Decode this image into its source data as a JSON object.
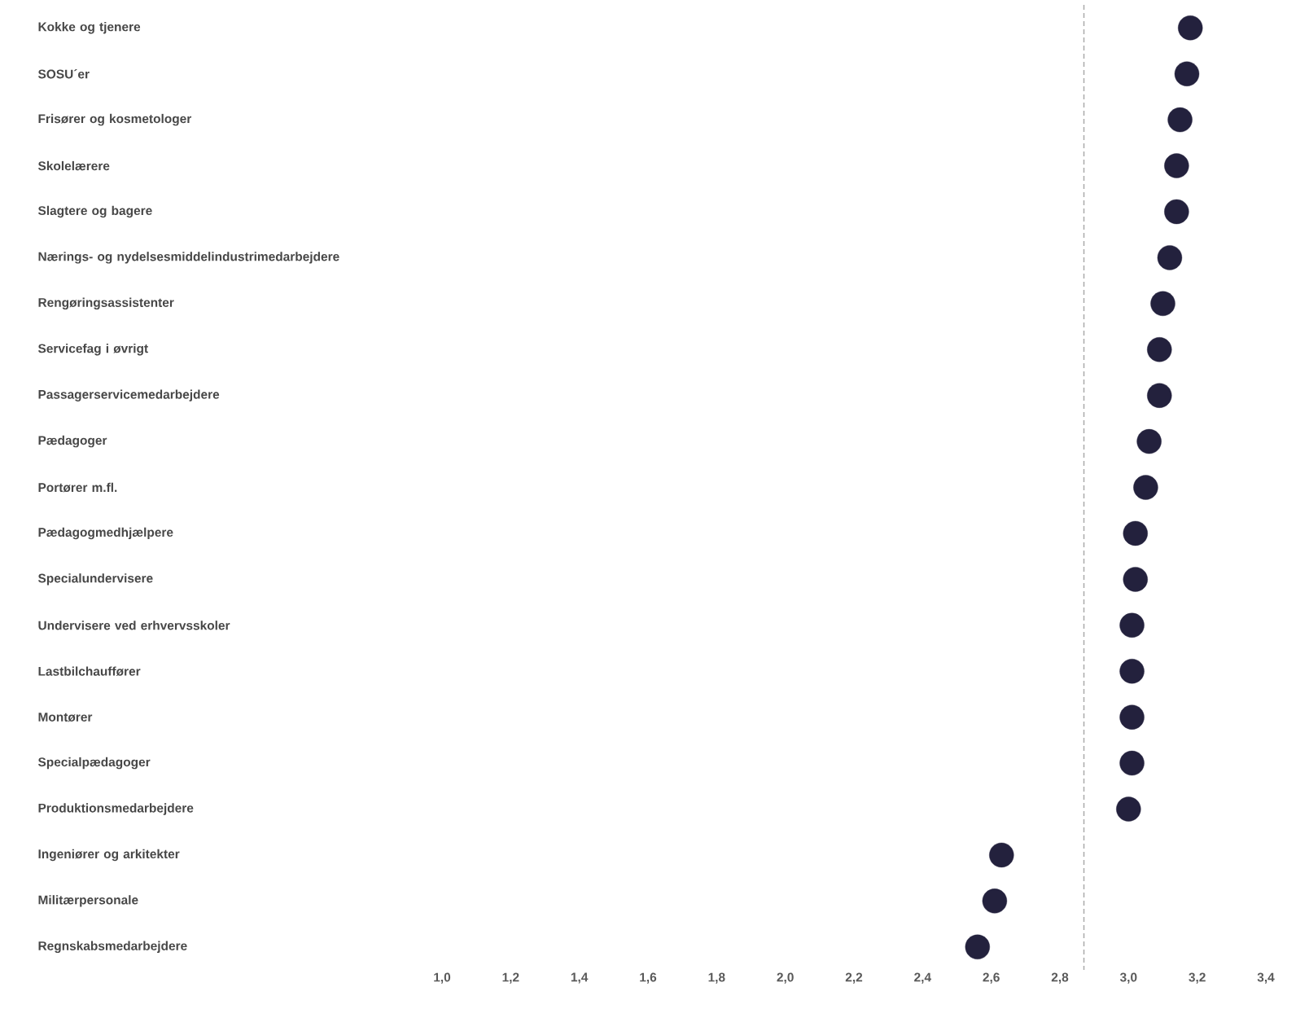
{
  "chart_data": {
    "type": "scatter",
    "orientation": "horizontal",
    "categories": [
      "Kokke og tjenere",
      "SOSU´er",
      "Frisører og kosmetologer",
      "Skolelærere",
      "Slagtere og bagere",
      "Nærings- og nydelsesmiddelindustrimedarbejdere",
      "Rengøringsassistenter",
      "Servicefag i øvrigt",
      "Passagerservicemedarbejdere",
      "Pædagoger",
      "Portører m.fl.",
      "Pædagogmedhjælpere",
      "Specialundervisere",
      "Undervisere ved erhvervsskoler",
      "Lastbilchauffører",
      "Montører",
      "Specialpædagoger",
      "Produktionsmedarbejdere",
      "Ingeniører og arkitekter",
      "Militærpersonale",
      "Regnskabsmedarbejdere"
    ],
    "values": [
      3.18,
      3.17,
      3.15,
      3.14,
      3.14,
      3.12,
      3.1,
      3.09,
      3.09,
      3.06,
      3.05,
      3.02,
      3.02,
      3.01,
      3.01,
      3.01,
      3.01,
      3.0,
      2.63,
      2.61,
      2.56
    ],
    "color": "#23213d",
    "marker": "circle",
    "xlim": [
      1.0,
      3.4
    ],
    "xticks": [
      {
        "value": 1.0,
        "label": "1,0"
      },
      {
        "value": 1.2,
        "label": "1,2"
      },
      {
        "value": 1.4,
        "label": "1,4"
      },
      {
        "value": 1.6,
        "label": "1,6"
      },
      {
        "value": 1.8,
        "label": "1,8"
      },
      {
        "value": 2.0,
        "label": "2,0"
      },
      {
        "value": 2.2,
        "label": "2,2"
      },
      {
        "value": 2.4,
        "label": "2,4"
      },
      {
        "value": 2.6,
        "label": "2,6"
      },
      {
        "value": 2.8,
        "label": "2,8"
      },
      {
        "value": 3.0,
        "label": "3,0"
      },
      {
        "value": 3.2,
        "label": "3,2"
      },
      {
        "value": 3.4,
        "label": "3,4"
      }
    ],
    "ref_lines": [
      {
        "axis": "x",
        "value": 2.87,
        "color": "#aaaaaa",
        "line_style": "dashed"
      }
    ]
  }
}
